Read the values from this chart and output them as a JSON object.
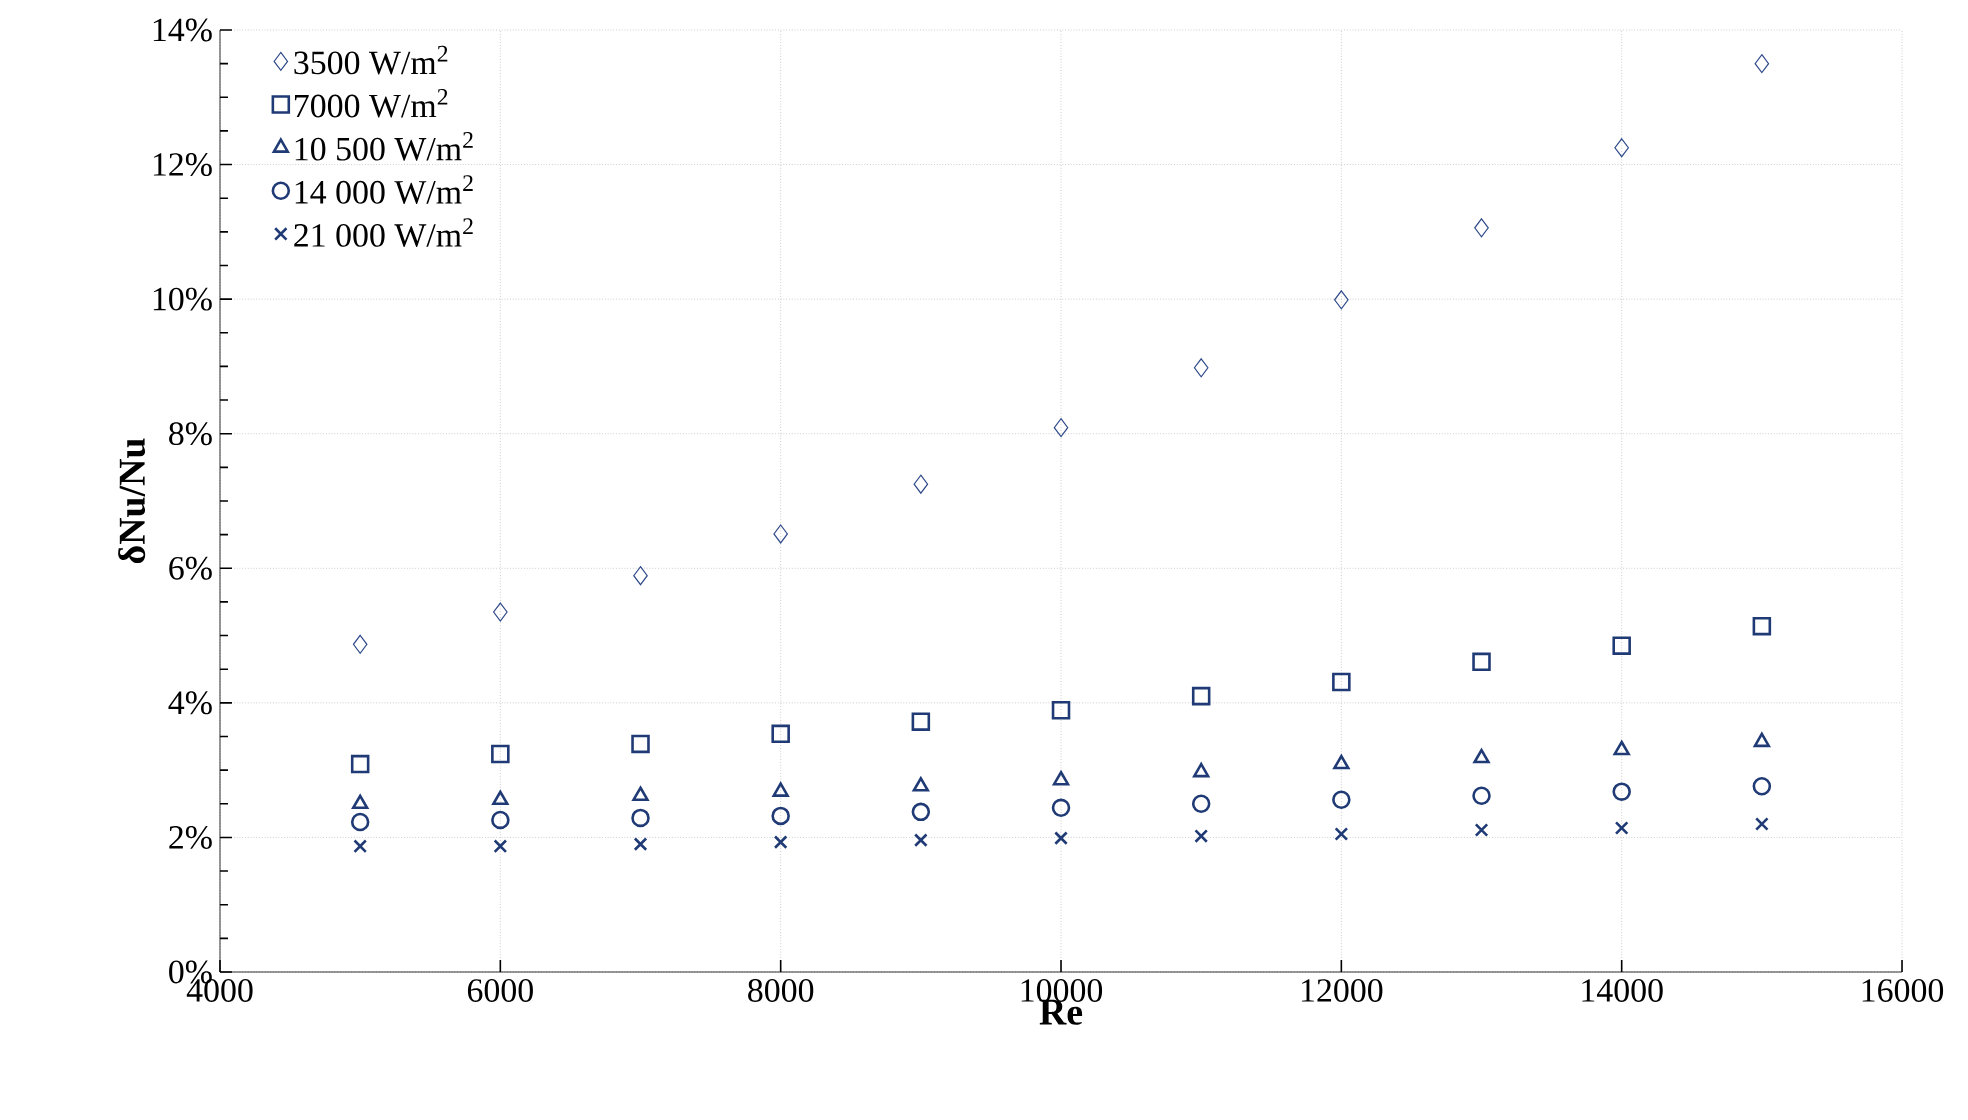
{
  "chart_data": {
    "type": "scatter",
    "xlabel": "Re",
    "ylabel": "δNu/Nu",
    "x": [
      5000,
      6000,
      7000,
      8000,
      9000,
      10000,
      11000,
      12000,
      13000,
      14000,
      15000
    ],
    "series": [
      {
        "name": "3500 W/m$^{2}$",
        "color": "#2f4a8a",
        "marker": "diamond",
        "values": [
          4.87,
          5.35,
          5.89,
          6.51,
          7.25,
          8.09,
          8.98,
          9.99,
          11.06,
          12.25,
          13.5
        ]
      },
      {
        "name": "7000 W/m$^{2}$",
        "color": "#1f3a75",
        "marker": "square",
        "values": [
          3.09,
          3.24,
          3.39,
          3.54,
          3.72,
          3.89,
          4.1,
          4.31,
          4.61,
          4.85,
          5.14
        ]
      },
      {
        "name": "10 500 W/m$^{2}$",
        "color": "#1f3a75",
        "marker": "triangle",
        "values": [
          2.5,
          2.56,
          2.62,
          2.68,
          2.76,
          2.85,
          2.97,
          3.09,
          3.18,
          3.3,
          3.42
        ]
      },
      {
        "name": "14 000 W/m$^{2}$",
        "color": "#1f3a75",
        "marker": "circle",
        "values": [
          2.23,
          2.26,
          2.29,
          2.32,
          2.38,
          2.44,
          2.5,
          2.56,
          2.62,
          2.68,
          2.76
        ]
      },
      {
        "name": "21 000 W/m$^{2}$",
        "color": "#1f3a75",
        "marker": "cross",
        "values": [
          1.87,
          1.87,
          1.9,
          1.93,
          1.96,
          1.99,
          2.02,
          2.05,
          2.11,
          2.14,
          2.2
        ]
      }
    ],
    "xlim": [
      4000,
      16000
    ],
    "xticks": [
      4000,
      6000,
      8000,
      10000,
      12000,
      14000,
      16000
    ],
    "ylim": [
      0,
      14
    ],
    "yticks": [
      {
        "value": 0,
        "label": "0%"
      },
      {
        "value": 2,
        "label": "2%"
      },
      {
        "value": 4,
        "label": "4%"
      },
      {
        "value": 6,
        "label": "6%"
      },
      {
        "value": 8,
        "label": "8%"
      },
      {
        "value": 10,
        "label": "10%"
      },
      {
        "value": 12,
        "label": "12%"
      },
      {
        "value": 14,
        "label": "14%"
      }
    ],
    "grid": true,
    "legend": "top left"
  }
}
